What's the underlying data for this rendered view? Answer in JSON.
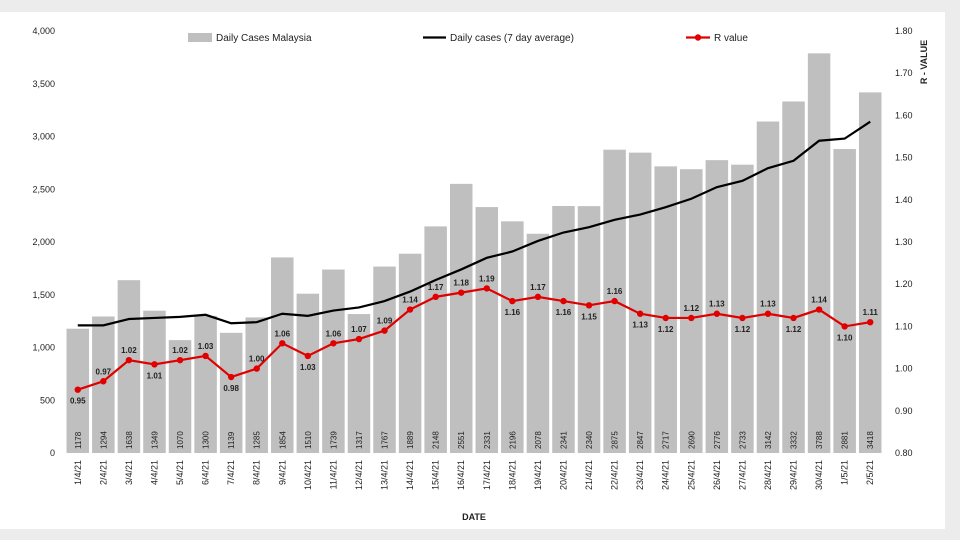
{
  "chart_data": {
    "type": "bar",
    "title": "",
    "xlabel": "DATE",
    "ylabel": "",
    "y2label": "R - VALUE",
    "categories": [
      "1/4/21",
      "2/4/21",
      "3/4/21",
      "4/4/21",
      "5/4/21",
      "6/4/21",
      "7/4/21",
      "8/4/21",
      "9/4/21",
      "10/4/21",
      "11/4/21",
      "12/4/21",
      "13/4/21",
      "14/4/21",
      "15/4/21",
      "16/4/21",
      "17/4/21",
      "18/4/21",
      "19/4/21",
      "20/4/21",
      "21/4/21",
      "22/4/21",
      "23/4/21",
      "24/4/21",
      "25/4/21",
      "26/4/21",
      "27/4/21",
      "28/4/21",
      "29/4/21",
      "30/4/21",
      "1/5/21",
      "2/5/21"
    ],
    "ylim": [
      0,
      4000
    ],
    "y_ticks": [
      "0",
      "500",
      "1,000",
      "1,500",
      "2,000",
      "2,500",
      "3,000",
      "3,500",
      "4,000"
    ],
    "y2lim": [
      0.8,
      1.8
    ],
    "y2_ticks": [
      "0.80",
      "0.90",
      "1.00",
      "1.10",
      "1.20",
      "1.30",
      "1.40",
      "1.50",
      "1.60",
      "1.70",
      "1.80"
    ],
    "grid": false,
    "legend_position": "top",
    "series": [
      {
        "name": "Daily Cases Malaysia",
        "type": "bar",
        "axis": "left",
        "color": "#bfbfbf",
        "values": [
          1178,
          1294,
          1638,
          1349,
          1070,
          1300,
          1139,
          1285,
          1854,
          1510,
          1739,
          1317,
          1767,
          1889,
          2148,
          2551,
          2331,
          2196,
          2078,
          2341,
          2340,
          2875,
          2847,
          2717,
          2690,
          2776,
          2733,
          3142,
          3332,
          3788,
          2881,
          3418
        ],
        "labels": [
          "1178",
          "1294",
          "1638",
          "1349",
          "1070",
          "1300",
          "1139",
          "1285",
          "1854",
          "1510",
          "1739",
          "1317",
          "1767",
          "1889",
          "2148",
          "2551",
          "2331",
          "2196",
          "2078",
          "2341",
          "2340",
          "2875",
          "2847",
          "2717",
          "2690",
          "2776",
          "2733",
          "3142",
          "3332",
          "3788",
          "2881",
          "3418"
        ]
      },
      {
        "name": "Daily cases (7 day average)",
        "type": "line",
        "axis": "left",
        "color": "#000000",
        "values": [
          1210,
          1210,
          1270,
          1280,
          1290,
          1310,
          1230,
          1240,
          1320,
          1300,
          1350,
          1380,
          1440,
          1530,
          1640,
          1740,
          1850,
          1910,
          2010,
          2090,
          2140,
          2210,
          2260,
          2330,
          2410,
          2520,
          2580,
          2700,
          2770,
          2960,
          2980,
          3140
        ]
      },
      {
        "name": "R value",
        "type": "line",
        "axis": "right",
        "color": "#e00000",
        "values": [
          0.95,
          0.97,
          1.02,
          1.01,
          1.02,
          1.03,
          0.98,
          1.0,
          1.06,
          1.03,
          1.06,
          1.07,
          1.09,
          1.14,
          1.17,
          1.18,
          1.19,
          1.16,
          1.17,
          1.16,
          1.15,
          1.16,
          1.13,
          1.12,
          1.12,
          1.13,
          1.12,
          1.13,
          1.12,
          1.14,
          1.1,
          1.11
        ],
        "labels": [
          "0.95",
          "0.97",
          "1.02",
          "1.01",
          "1.02",
          "1.03",
          "0.98",
          "1.00",
          "1.06",
          "1.03",
          "1.06",
          "1.07",
          "1.09",
          "1.14",
          "1.17",
          "1.18",
          "1.19",
          "1.16",
          "1.17",
          "1.16",
          "1.15",
          "1.16",
          "1.13",
          "1.12",
          "1.12",
          "1.13",
          "1.12",
          "1.13",
          "1.12",
          "1.14",
          "1.10",
          "1.11"
        ]
      }
    ]
  }
}
